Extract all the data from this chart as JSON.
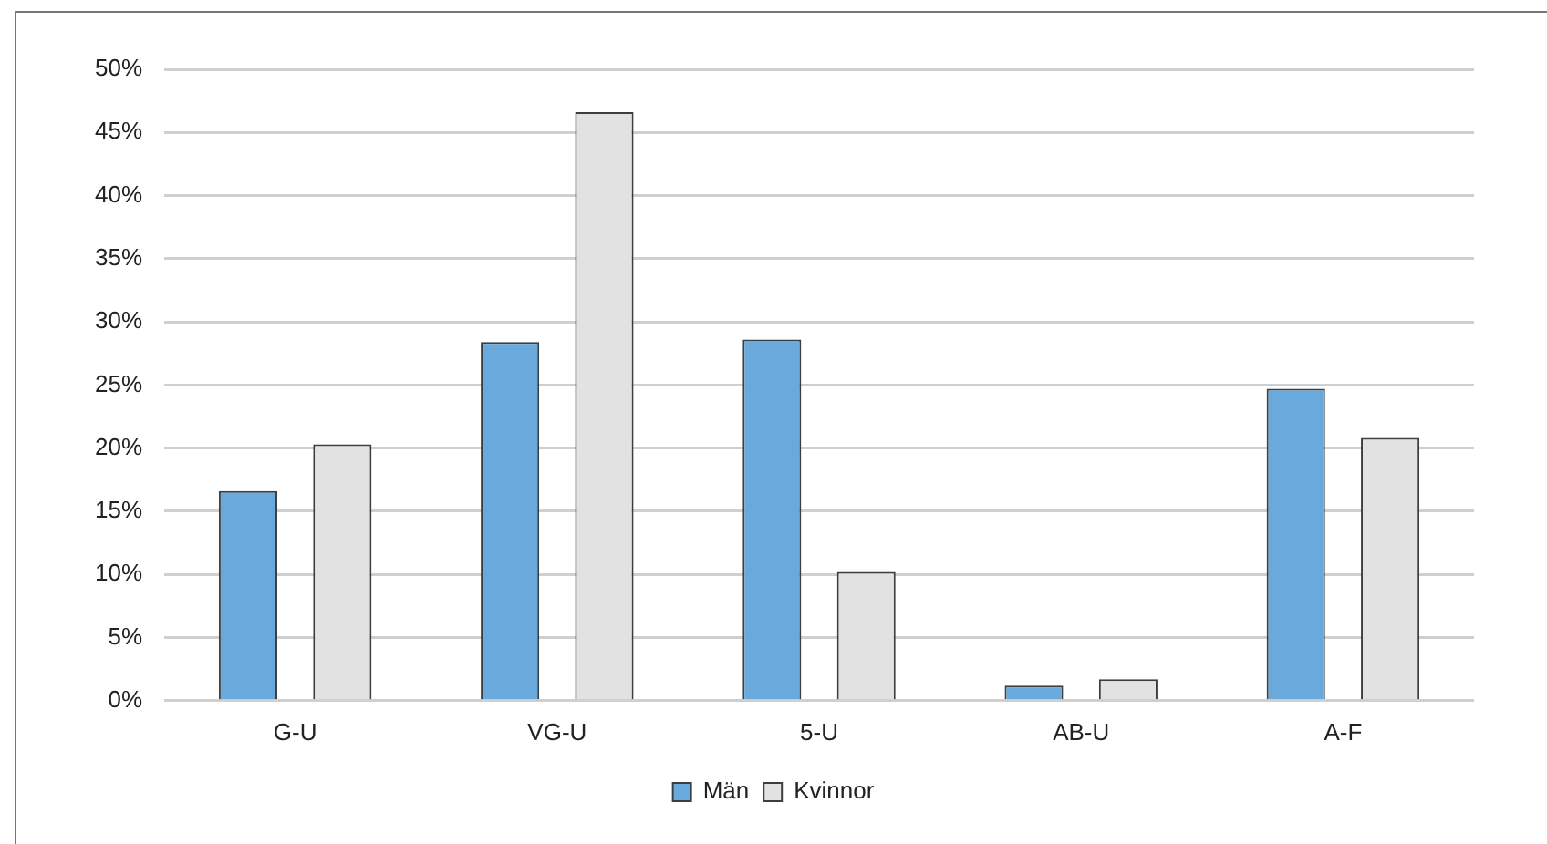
{
  "chart_data": {
    "type": "bar",
    "categories": [
      "G-U",
      "VG-U",
      "5-U",
      "AB-U",
      "A-F"
    ],
    "series": [
      {
        "name": "Män",
        "color": "#6aa9dc",
        "values": [
          16.6,
          28.4,
          28.6,
          1.2,
          24.7
        ]
      },
      {
        "name": "Kvinnor",
        "color": "#e2e2e2",
        "values": [
          20.3,
          46.6,
          10.2,
          1.7,
          20.8
        ]
      }
    ],
    "ylim": [
      0,
      50
    ],
    "yticks": [
      {
        "value": 0,
        "label": "0%"
      },
      {
        "value": 5,
        "label": "5%"
      },
      {
        "value": 10,
        "label": "10%"
      },
      {
        "value": 15,
        "label": "15%"
      },
      {
        "value": 20,
        "label": "20%"
      },
      {
        "value": 25,
        "label": "25%"
      },
      {
        "value": 30,
        "label": "30%"
      },
      {
        "value": 35,
        "label": "35%"
      },
      {
        "value": 40,
        "label": "40%"
      },
      {
        "value": 45,
        "label": "45%"
      },
      {
        "value": 50,
        "label": "50%"
      }
    ],
    "grid": "y",
    "legend": "bottom"
  }
}
